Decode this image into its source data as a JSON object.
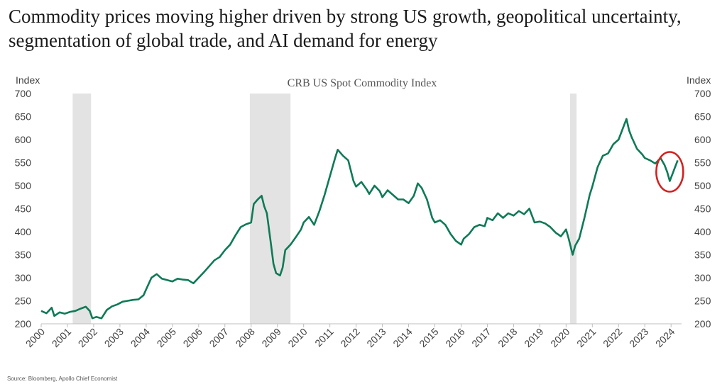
{
  "headline": "Commodity prices moving higher driven by strong US growth, geopolitical uncertainty, segmentation of global trade, and AI demand for energy",
  "source": "Source: Bloomberg, Apollo Chief Economist",
  "chart_data": {
    "type": "line",
    "title": "CRB US Spot Commodity Index",
    "ylabel_left": "Index",
    "ylabel_right": "Index",
    "ylim": [
      200,
      700
    ],
    "yticks": [
      200,
      250,
      300,
      350,
      400,
      450,
      500,
      550,
      600,
      650,
      700
    ],
    "xlim": [
      2000,
      2024.4
    ],
    "xticks": [
      "2000",
      "2001",
      "2002",
      "2003",
      "2004",
      "2005",
      "2006",
      "2007",
      "2008",
      "2009",
      "2010",
      "2011",
      "2012",
      "2013",
      "2014",
      "2015",
      "2016",
      "2017",
      "2018",
      "2019",
      "2020",
      "2021",
      "2022",
      "2023",
      "2024"
    ],
    "grid": false,
    "line_color": "#0e7a57",
    "recession_color": "#e3e3e3",
    "highlight_color": "#d42020",
    "recessions": [
      [
        2001.2,
        2001.9
      ],
      [
        2007.95,
        2009.5
      ],
      [
        2020.15,
        2020.4
      ]
    ],
    "highlight_center": [
      2023.95,
      530
    ],
    "series": [
      {
        "x": [
          2000.0,
          2000.2,
          2000.4,
          2000.5,
          2000.7,
          2000.9,
          2001.1,
          2001.3,
          2001.5,
          2001.7,
          2001.85,
          2001.95,
          2002.1,
          2002.3,
          2002.5,
          2002.7,
          2002.9,
          2003.1,
          2003.3,
          2003.5,
          2003.7,
          2003.9,
          2004.0,
          2004.2,
          2004.4,
          2004.6,
          2004.8,
          2005.0,
          2005.2,
          2005.4,
          2005.6,
          2005.8,
          2006.0,
          2006.2,
          2006.4,
          2006.6,
          2006.8,
          2007.0,
          2007.2,
          2007.4,
          2007.6,
          2007.8,
          2008.0,
          2008.1,
          2008.25,
          2008.4,
          2008.5,
          2008.6,
          2008.75,
          2008.85,
          2008.95,
          2009.1,
          2009.2,
          2009.3,
          2009.5,
          2009.7,
          2009.9,
          2010.0,
          2010.2,
          2010.4,
          2010.6,
          2010.8,
          2011.0,
          2011.2,
          2011.3,
          2011.5,
          2011.7,
          2011.9,
          2012.0,
          2012.2,
          2012.4,
          2012.5,
          2012.7,
          2012.9,
          2013.0,
          2013.2,
          2013.4,
          2013.6,
          2013.8,
          2014.0,
          2014.2,
          2014.35,
          2014.5,
          2014.7,
          2014.9,
          2015.0,
          2015.2,
          2015.4,
          2015.6,
          2015.8,
          2016.0,
          2016.1,
          2016.3,
          2016.5,
          2016.7,
          2016.9,
          2017.0,
          2017.2,
          2017.4,
          2017.6,
          2017.8,
          2018.0,
          2018.2,
          2018.4,
          2018.6,
          2018.8,
          2019.0,
          2019.2,
          2019.4,
          2019.6,
          2019.8,
          2020.0,
          2020.1,
          2020.25,
          2020.35,
          2020.5,
          2020.7,
          2020.9,
          2021.0,
          2021.2,
          2021.4,
          2021.6,
          2021.8,
          2022.0,
          2022.2,
          2022.3,
          2022.4,
          2022.5,
          2022.7,
          2022.9,
          2023.0,
          2023.2,
          2023.4,
          2023.6,
          2023.75,
          2023.85,
          2023.95,
          2024.05,
          2024.15,
          2024.25
        ],
        "y": [
          228,
          223,
          235,
          217,
          225,
          222,
          226,
          228,
          233,
          237,
          228,
          212,
          215,
          212,
          230,
          238,
          242,
          248,
          250,
          252,
          253,
          262,
          275,
          300,
          308,
          298,
          295,
          292,
          298,
          296,
          295,
          288,
          300,
          312,
          325,
          338,
          345,
          360,
          372,
          392,
          410,
          416,
          420,
          460,
          470,
          478,
          455,
          440,
          375,
          330,
          310,
          305,
          322,
          360,
          372,
          388,
          405,
          420,
          432,
          415,
          445,
          480,
          520,
          560,
          578,
          565,
          555,
          510,
          498,
          508,
          492,
          482,
          500,
          488,
          475,
          490,
          480,
          470,
          470,
          462,
          478,
          505,
          495,
          470,
          430,
          420,
          425,
          415,
          395,
          380,
          372,
          385,
          395,
          410,
          415,
          412,
          430,
          425,
          440,
          430,
          440,
          435,
          445,
          438,
          450,
          420,
          422,
          418,
          410,
          398,
          390,
          405,
          385,
          350,
          370,
          385,
          430,
          480,
          498,
          540,
          565,
          570,
          590,
          600,
          630,
          645,
          620,
          605,
          580,
          568,
          560,
          555,
          548,
          560,
          545,
          530,
          510,
          525,
          540,
          555
        ]
      }
    ]
  }
}
